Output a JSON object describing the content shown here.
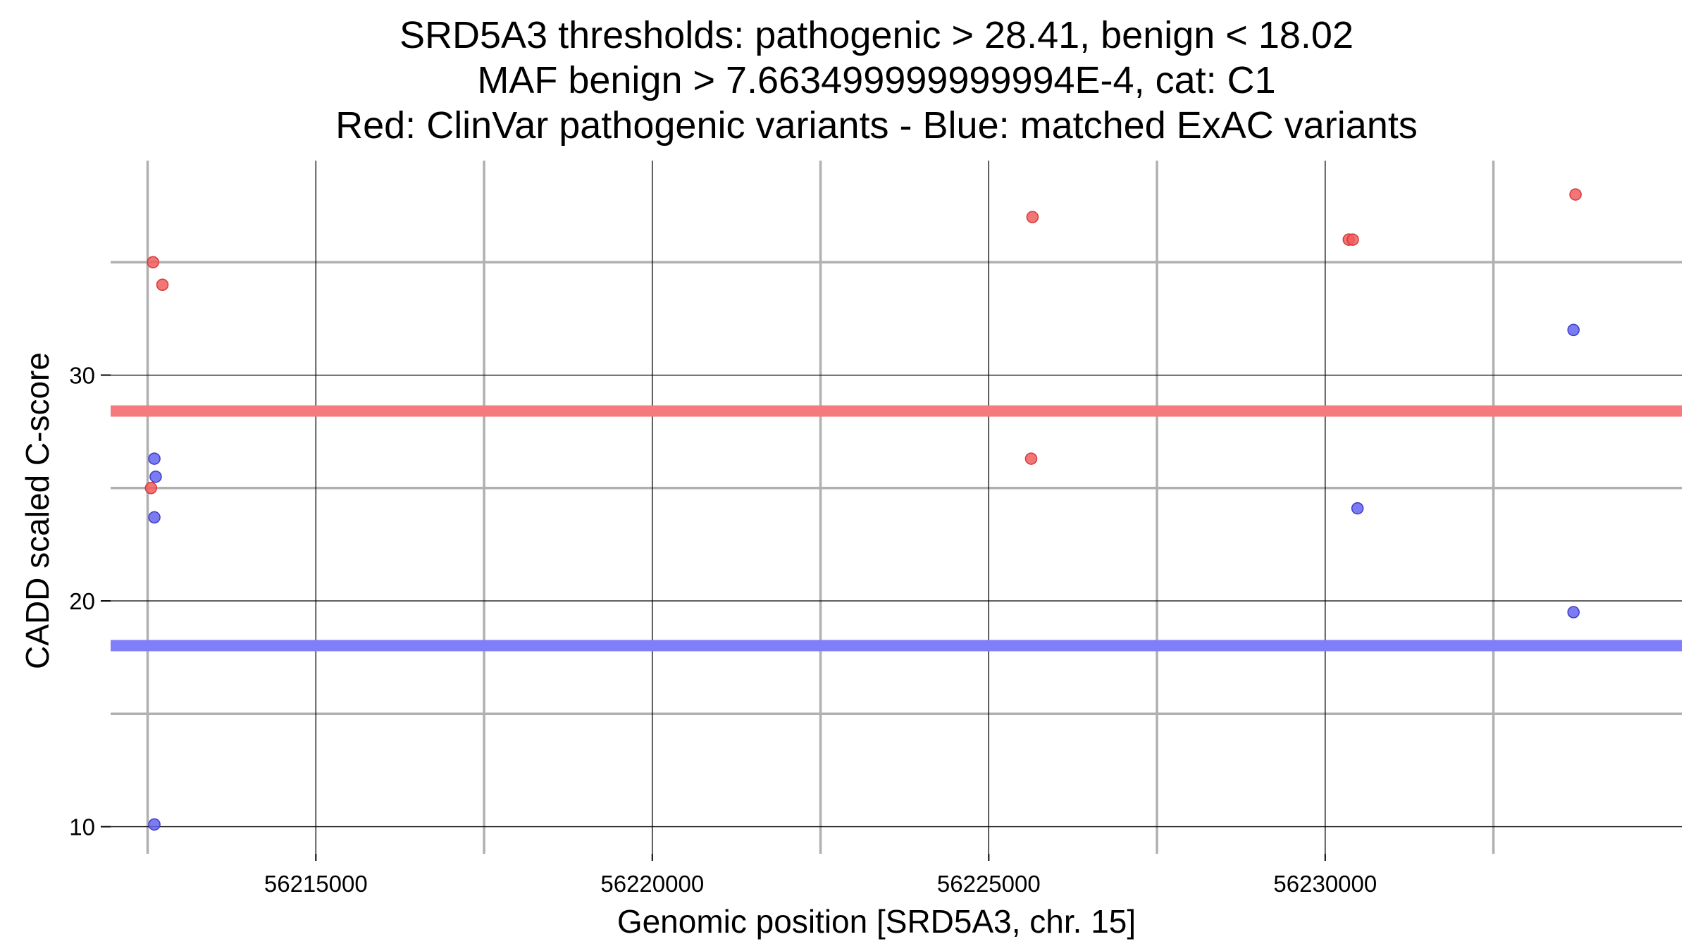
{
  "chart_data": {
    "type": "scatter",
    "title_lines": [
      "SRD5A3 thresholds: pathogenic > 28.41, benign < 18.02",
      "MAF benign > 7.663499999999994E-4, cat: C1",
      "Red: ClinVar pathogenic variants - Blue: matched ExAC variants"
    ],
    "xlabel": "Genomic position [SRD5A3, chr. 15]",
    "ylabel": "CADD scaled C-score",
    "xlim": [
      56211950,
      56235300
    ],
    "ylim": [
      8.8,
      39.5
    ],
    "x_ticks": [
      56215000,
      56220000,
      56225000,
      56230000
    ],
    "x_tick_labels": [
      "56215000",
      "56220000",
      "56225000",
      "56230000"
    ],
    "x_minor_grid": [
      56212500,
      56217500,
      56222500,
      56227500,
      56232500
    ],
    "y_ticks": [
      10,
      20,
      30
    ],
    "y_tick_labels": [
      "10",
      "20",
      "30"
    ],
    "y_minor_grid": [
      15,
      25,
      35
    ],
    "thresholds": {
      "pathogenic": {
        "value": 28.41,
        "color": "#f47a7e"
      },
      "benign": {
        "value": 18.02,
        "color": "#7f7ffa"
      }
    },
    "series": [
      {
        "name": "ClinVar pathogenic variants",
        "color": "#f25d5d",
        "edge": "#d43a3a",
        "points": [
          {
            "x": 56212580,
            "y": 35.0
          },
          {
            "x": 56212720,
            "y": 34.0
          },
          {
            "x": 56212550,
            "y": 25.0
          },
          {
            "x": 56225650,
            "y": 37.0
          },
          {
            "x": 56225630,
            "y": 26.3
          },
          {
            "x": 56230350,
            "y": 36.0
          },
          {
            "x": 56230410,
            "y": 36.0
          },
          {
            "x": 56233720,
            "y": 38.0
          }
        ]
      },
      {
        "name": "matched ExAC variants",
        "color": "#6464f0",
        "edge": "#3c3cc8",
        "points": [
          {
            "x": 56212600,
            "y": 26.3
          },
          {
            "x": 56212620,
            "y": 25.5
          },
          {
            "x": 56212600,
            "y": 23.7
          },
          {
            "x": 56212600,
            "y": 10.1
          },
          {
            "x": 56230480,
            "y": 24.1
          },
          {
            "x": 56233690,
            "y": 32.0
          },
          {
            "x": 56233690,
            "y": 19.5
          }
        ]
      }
    ]
  }
}
